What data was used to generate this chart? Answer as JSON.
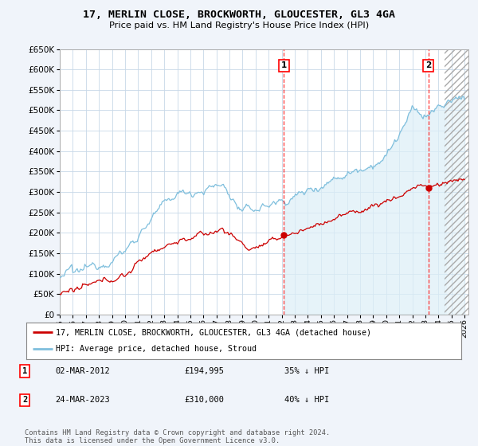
{
  "title": "17, MERLIN CLOSE, BROCKWORTH, GLOUCESTER, GL3 4GA",
  "subtitle": "Price paid vs. HM Land Registry's House Price Index (HPI)",
  "hpi_label": "HPI: Average price, detached house, Stroud",
  "property_label": "17, MERLIN CLOSE, BROCKWORTH, GLOUCESTER, GL3 4GA (detached house)",
  "hpi_color": "#7fbfdd",
  "hpi_fill_color": "#dceef7",
  "property_color": "#cc0000",
  "background_color": "#f0f4fa",
  "plot_bg": "#ffffff",
  "grid_color": "#c8d8e8",
  "ylim": [
    0,
    650000
  ],
  "yticks": [
    0,
    50000,
    100000,
    150000,
    200000,
    250000,
    300000,
    350000,
    400000,
    450000,
    500000,
    550000,
    600000,
    650000
  ],
  "marker1_year": 2012.17,
  "marker1_value": 194995,
  "marker2_year": 2023.23,
  "marker2_value": 310000,
  "hatch_start": 2024.5,
  "xmin": 1995,
  "xmax": 2026.3,
  "footer": "Contains HM Land Registry data © Crown copyright and database right 2024.\nThis data is licensed under the Open Government Licence v3.0.",
  "table": [
    {
      "num": "1",
      "date": "02-MAR-2012",
      "price": "£194,995",
      "hpi": "35% ↓ HPI"
    },
    {
      "num": "2",
      "date": "24-MAR-2023",
      "price": "£310,000",
      "hpi": "40% ↓ HPI"
    }
  ]
}
